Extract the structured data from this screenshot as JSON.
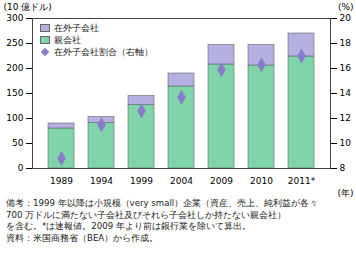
{
  "chart_data": {
    "type": "bar",
    "stacked": true,
    "categories": [
      "1989",
      "1994",
      "1999",
      "2004",
      "2009",
      "2010",
      "2011*"
    ],
    "xlabel": "(年)",
    "ylabel": "(10 億ドル)",
    "y2label": "(%)",
    "ylim": [
      0,
      300
    ],
    "yticks": [
      0,
      50,
      100,
      150,
      200,
      250,
      300
    ],
    "y2lim": [
      8,
      20
    ],
    "y2ticks": [
      8,
      10,
      12,
      14,
      16,
      18,
      20
    ],
    "legend": "top-left",
    "series": [
      {
        "name": "在外子会社",
        "type": "bar",
        "color": "#b4b0e2",
        "values": [
          10,
          12,
          18,
          26,
          39,
          41,
          46
        ]
      },
      {
        "name": "親会社",
        "type": "bar",
        "color": "#7fd4a9",
        "values": [
          80,
          91,
          127,
          164,
          208,
          206,
          224
        ]
      },
      {
        "name": "在外子会社割合（右軸）",
        "type": "scatter",
        "axis": "y2",
        "marker": "diamond",
        "color": "#8a7ccc",
        "values": [
          8.8,
          11.5,
          12.6,
          13.7,
          15.9,
          16.3,
          17.0
        ]
      }
    ],
    "notes": [
      "備考：1999 年以降は小規模（very small）企業（資産、売上、純利益が各々",
      "700 万ドルに満たない子会社及びそれら子会社しか持たない親会社）",
      "を含む。*は速報値。2009 年より前は銀行業を除いて算出。",
      "資料：米国商務省（BEA）から作成。"
    ]
  }
}
